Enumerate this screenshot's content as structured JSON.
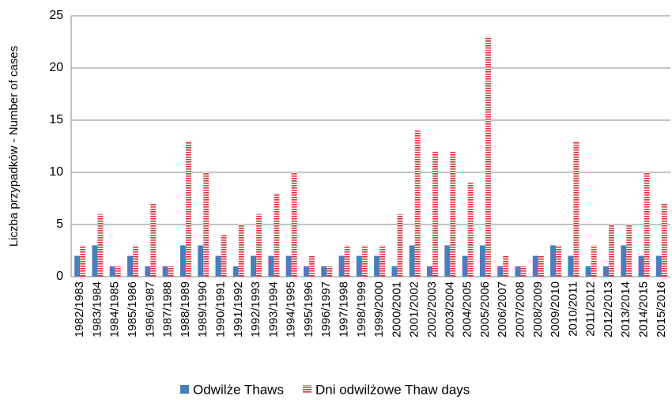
{
  "chart_data": {
    "type": "bar",
    "y_label": "Liczba przypadków - Number of cases",
    "categories": [
      "1982/1983",
      "1983/1984",
      "1984/1985",
      "1985/1986",
      "1986/1987",
      "1987/1988",
      "1988/1989",
      "1989/1990",
      "1990/1991",
      "1991/1992",
      "1992/1993",
      "1993/1994",
      "1994/1995",
      "1995/1996",
      "1996/1997",
      "1997/1998",
      "1998/1999",
      "1999/2000",
      "2000/2001",
      "2001/2002",
      "2002/2003",
      "2003/2004",
      "2004/2005",
      "2005/2006",
      "2006/2007",
      "2007/2008",
      "2008/2009",
      "2009/2010",
      "2010/2011",
      "2011/2012",
      "2012/2013",
      "2013/2014",
      "2014/2015",
      "2015/2016"
    ],
    "series": [
      {
        "name": "Odwilże Thaws",
        "color": "#4a7ebb",
        "values": [
          2,
          3,
          1,
          2,
          1,
          1,
          3,
          3,
          2,
          1,
          2,
          2,
          2,
          1,
          1,
          2,
          2,
          2,
          1,
          3,
          1,
          3,
          2,
          3,
          1,
          1,
          2,
          3,
          2,
          1,
          1,
          3,
          2,
          2
        ]
      },
      {
        "name": "Dni odwilżowe Thaw days",
        "color": "#e0303a",
        "values": [
          3,
          6,
          1,
          3,
          7,
          1,
          13,
          10,
          4,
          5,
          6,
          8,
          10,
          2,
          1,
          3,
          3,
          3,
          6,
          14,
          12,
          12,
          9,
          23,
          2,
          1,
          2,
          3,
          13,
          3,
          5,
          5,
          10,
          7
        ]
      }
    ],
    "ylim": [
      0,
      25
    ],
    "yticks": [
      0,
      5,
      10,
      15,
      20,
      25
    ],
    "grid": true,
    "legend": "bottom"
  }
}
